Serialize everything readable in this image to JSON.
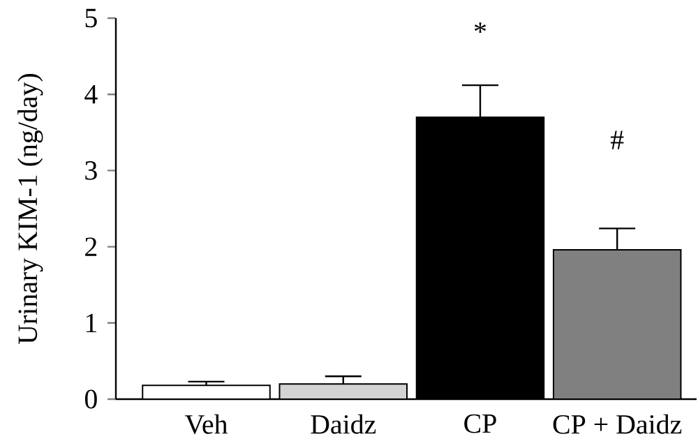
{
  "chart_data": {
    "type": "bar",
    "ylabel": "Urinary KIM-1 (ng/day)",
    "categories": [
      "Veh",
      "Daidz",
      "CP",
      "CP + Daidz"
    ],
    "values": [
      0.18,
      0.2,
      3.7,
      1.96
    ],
    "errors": [
      0.05,
      0.1,
      0.42,
      0.28
    ],
    "colors": [
      "#ffffff",
      "#d3d3d3",
      "#000000",
      "#808080"
    ],
    "ylim": [
      0,
      5
    ],
    "yticks": [
      0,
      1,
      2,
      3,
      4,
      5
    ],
    "annotations": [
      "*",
      "#"
    ]
  }
}
